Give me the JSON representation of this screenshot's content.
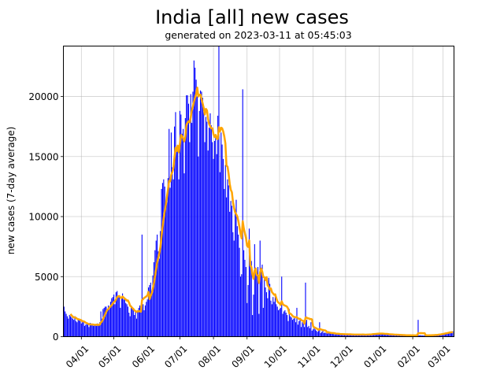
{
  "chart_data": {
    "type": "bar",
    "title": "India [all] new cases",
    "subtitle": "generated on 2023-03-11 at 05:45:03",
    "xlabel": "",
    "ylabel": "new cases (7-day average)",
    "ylim": [
      0,
      24200
    ],
    "grid": true,
    "first_date": "2022-03-16",
    "x_ticks": [
      {
        "date": "2022-04-01",
        "label": "04/01"
      },
      {
        "date": "2022-05-01",
        "label": "05/01"
      },
      {
        "date": "2022-06-01",
        "label": "06/01"
      },
      {
        "date": "2022-07-01",
        "label": "07/01"
      },
      {
        "date": "2022-08-01",
        "label": "08/01"
      },
      {
        "date": "2022-09-01",
        "label": "09/01"
      },
      {
        "date": "2022-10-01",
        "label": "10/01"
      },
      {
        "date": "2022-11-01",
        "label": "11/01"
      },
      {
        "date": "2022-12-01",
        "label": "12/01"
      },
      {
        "date": "2023-01-01",
        "label": "01/01"
      },
      {
        "date": "2023-02-01",
        "label": "02/01"
      },
      {
        "date": "2023-03-01",
        "label": "03/01"
      }
    ],
    "y_ticks": [
      {
        "value": 0,
        "label": "0"
      },
      {
        "value": 5000,
        "label": "5000"
      },
      {
        "value": 10000,
        "label": "10000"
      },
      {
        "value": 15000,
        "label": "15000"
      },
      {
        "value": 20000,
        "label": "20000"
      }
    ],
    "series": [
      {
        "kind": "bar",
        "color": "#0000ff",
        "values": [
          2500,
          2100,
          1900,
          1700,
          1500,
          1800,
          1700,
          1600,
          1500,
          1400,
          1700,
          1300,
          1200,
          1500,
          1400,
          1300,
          1100,
          1200,
          1250,
          900,
          1000,
          1100,
          1000,
          800,
          1150,
          1100,
          1000,
          900,
          950,
          1000,
          900,
          1100,
          1000,
          1200,
          2100,
          1500,
          2300,
          2400,
          2500,
          2500,
          2300,
          2600,
          2400,
          2900,
          3200,
          3300,
          3500,
          2700,
          3700,
          3800,
          3300,
          3400,
          2400,
          3200,
          3600,
          3100,
          3200,
          2800,
          2700,
          2500,
          2000,
          1700,
          2600,
          2400,
          2300,
          1800,
          2100,
          1500,
          2200,
          2400,
          2600,
          2000,
          8500,
          2700,
          2200,
          2600,
          2900,
          3100,
          4100,
          4300,
          4500,
          3800,
          5100,
          6200,
          7200,
          8000,
          8500,
          7100,
          6500,
          8800,
          12300,
          12800,
          13100,
          12500,
          10800,
          11200,
          13200,
          17300,
          12400,
          17000,
          14100,
          13100,
          17500,
          18700,
          15400,
          15600,
          13100,
          18800,
          18500,
          16900,
          17300,
          13600,
          18200,
          20100,
          20100,
          19400,
          16200,
          20200,
          17800,
          20400,
          23000,
          22400,
          21400,
          20000,
          15000,
          18800,
          20500,
          20400,
          19900,
          18700,
          16200,
          18300,
          17900,
          15500,
          17400,
          18600,
          17600,
          16200,
          14800,
          16300,
          16700,
          15200,
          18400,
          24500,
          13700,
          17000,
          16000,
          14800,
          12300,
          14300,
          11600,
          13100,
          12600,
          10400,
          11300,
          10900,
          8700,
          8000,
          10600,
          11400,
          9200,
          8500,
          7400,
          5000,
          5200,
          20600,
          7200,
          6400,
          5800,
          2800,
          4300,
          9000,
          6000,
          6300,
          1800,
          3500,
          7700,
          5500,
          5100,
          5800,
          1900,
          8000,
          5700,
          6000,
          2400,
          4800,
          4100,
          3700,
          3200,
          4900,
          4400,
          3000,
          2700,
          3300,
          2900,
          3500,
          2700,
          2500,
          2200,
          2300,
          2400,
          5000,
          1900,
          2100,
          2200,
          2000,
          1800,
          1300,
          2300,
          1700,
          1600,
          1400,
          1500,
          1600,
          1200,
          2400,
          1000,
          1300,
          1400,
          800,
          1200,
          1100,
          800,
          4500,
          1400,
          800,
          900,
          700,
          1200,
          500,
          600,
          700,
          600,
          500,
          400,
          600,
          1200,
          300,
          400,
          500,
          300,
          350,
          300,
          250,
          450,
          300,
          280,
          250,
          320,
          220,
          180,
          260,
          240,
          230,
          200,
          210,
          190,
          170,
          220,
          200,
          200,
          190,
          180,
          170,
          210,
          160,
          150,
          180,
          170,
          160,
          200,
          190,
          160,
          150,
          170,
          180,
          190,
          160,
          140,
          170,
          190,
          200,
          210,
          180,
          230,
          250,
          220,
          240,
          260,
          280,
          270,
          250,
          240,
          260,
          230,
          220,
          200,
          210,
          230,
          190,
          180,
          170,
          160,
          180,
          170,
          150,
          160,
          140,
          130,
          150,
          140,
          130,
          120,
          110,
          120,
          100,
          110,
          130,
          120,
          100,
          110,
          100,
          110,
          100,
          120,
          90,
          110,
          1400,
          100,
          120,
          110,
          90,
          100,
          110,
          130,
          120,
          100,
          140,
          120,
          110,
          130,
          150,
          140,
          160,
          180,
          170,
          200,
          230,
          240,
          260,
          280,
          300,
          330,
          350,
          330,
          380,
          420,
          400,
          380,
          450
        ]
      },
      {
        "kind": "line",
        "color": "#ffa500",
        "window_days": 7
      }
    ]
  }
}
